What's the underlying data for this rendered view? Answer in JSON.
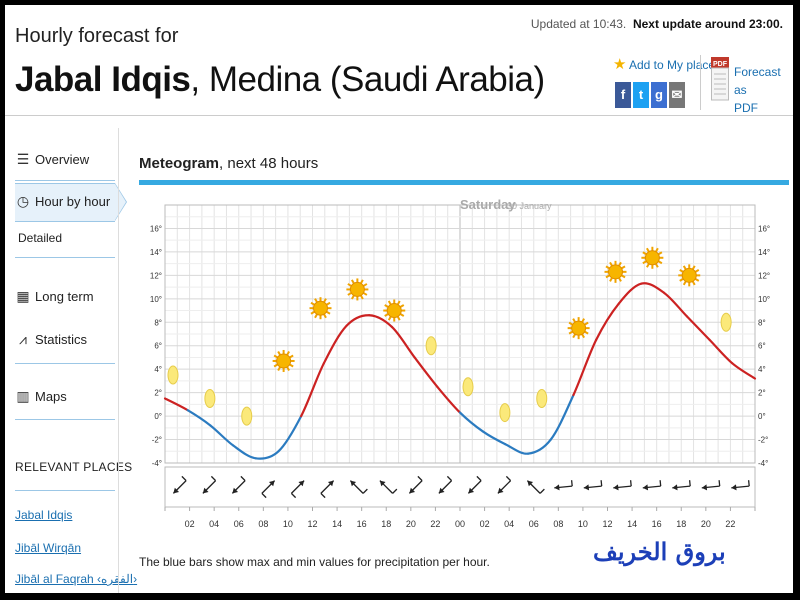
{
  "header": {
    "subtitle": "Hourly forecast for",
    "place_bold": "Jabal Idqis",
    "place_rest": ", Medina (Saudi Arabia)",
    "updated": "Updated at 10:43.",
    "next_update": "Next update around 23:00.",
    "add_places": "Add to My places",
    "forecast_pdf_line1": "Forecast as",
    "forecast_pdf_line2": "PDF",
    "pdf_badge": "PDF"
  },
  "sidebar": {
    "items": [
      {
        "label": "Overview",
        "icon": "list-icon"
      },
      {
        "label": "Hour by hour",
        "icon": "clock-icon"
      },
      {
        "label": "Detailed",
        "icon": ""
      },
      {
        "label": "Long term",
        "icon": "calendar-icon"
      },
      {
        "label": "Statistics",
        "icon": "chart-icon"
      },
      {
        "label": "Maps",
        "icon": "map-icon"
      }
    ],
    "relevant_title": "RELEVANT PLACES",
    "places": [
      "Jabal Idqis",
      "Jibāl Wirqān",
      "Jibāl al Faqrah ‹الفقره›"
    ]
  },
  "main": {
    "meteogram_bold": "Meteogram",
    "meteogram_rest": ", next 48 hours",
    "footnote": "The blue bars show max and min values for precipitation per hour."
  },
  "watermark": "بروق الخريف",
  "colors": {
    "accent": "#36a9e1",
    "temp_warm": "#cc2222",
    "temp_cold": "#2b7bc0",
    "link": "#1a6fb0"
  },
  "chart_data": {
    "type": "line",
    "day_label": "Saturday",
    "day_date": "30 January",
    "y_ticks": [
      "16°",
      "14°",
      "12°",
      "10°",
      "8°",
      "6°",
      "4°",
      "2°",
      "0°",
      "-2°",
      "-4°"
    ],
    "ylim": [
      -4,
      18
    ],
    "x_ticks": [
      "02",
      "04",
      "06",
      "08",
      "10",
      "12",
      "14",
      "16",
      "18",
      "20",
      "22",
      "00",
      "02",
      "04",
      "06",
      "08",
      "10",
      "12",
      "14",
      "16",
      "18",
      "20",
      "22"
    ],
    "series": [
      {
        "values": [
          1.5,
          0.5,
          -0.8,
          -2.5,
          -3.6,
          -3.0,
          0.0,
          4.5,
          7.7,
          8.6,
          7.6,
          5.0,
          2.5,
          0.3,
          -1.3,
          -2.4,
          -3.2,
          -2.0,
          1.8,
          6.5,
          9.6,
          11.3,
          10.5,
          8.5,
          6.5,
          4.5,
          3.2
        ]
      }
    ],
    "weather_icons": [
      "moon",
      "moon",
      "moon",
      "sun",
      "sun",
      "sun",
      "sun",
      "moon",
      "moon",
      "moon",
      "moon",
      "sun",
      "sun",
      "sun",
      "sun",
      "moon"
    ],
    "icon_temps": [
      3.5,
      1.5,
      0.0,
      4.7,
      9.2,
      10.8,
      9.0,
      6.0,
      2.5,
      0.3,
      1.5,
      7.5,
      12.3,
      13.5,
      12.0,
      8.0
    ],
    "wind_arrows": [
      "sw",
      "sw",
      "sw",
      "ne",
      "ne",
      "ne",
      "nw",
      "nw",
      "sw",
      "sw",
      "sw",
      "sw",
      "nw",
      "w",
      "w",
      "w",
      "w",
      "w",
      "w",
      "w"
    ]
  }
}
